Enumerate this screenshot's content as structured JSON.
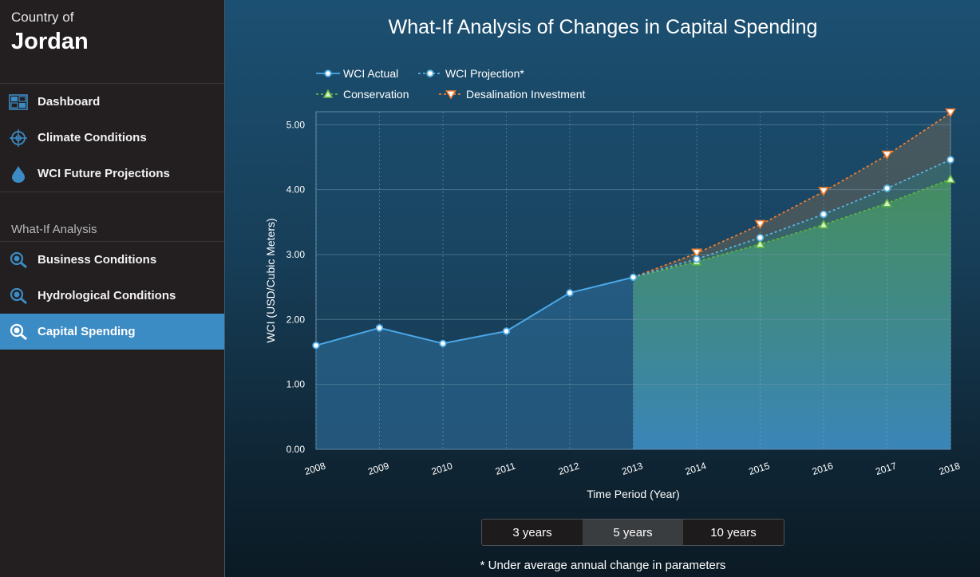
{
  "sidebar": {
    "country_label": "Country of",
    "country_name": "Jordan",
    "nav": [
      {
        "label": "Dashboard",
        "icon": "dashboard-icon"
      },
      {
        "label": "Climate Conditions",
        "icon": "crosshair-icon"
      },
      {
        "label": "WCI Future Projections",
        "icon": "water-drop-icon"
      }
    ],
    "section_title": "What-If Analysis",
    "whatif": [
      {
        "label": "Business Conditions",
        "icon": "magnifier-icon",
        "active": false
      },
      {
        "label": "Hydrological Conditions",
        "icon": "magnifier-icon",
        "active": false
      },
      {
        "label": "Capital Spending",
        "icon": "magnifier-icon",
        "active": true
      }
    ]
  },
  "main": {
    "range_buttons": [
      {
        "label": "3 years",
        "active": false
      },
      {
        "label": "5 years",
        "active": true
      },
      {
        "label": "10 years",
        "active": false
      }
    ],
    "footnote": "*  Under average annual change in parameters"
  },
  "colors": {
    "actual": "#4aa8e8",
    "projection": "#5eb4e0",
    "conservation": "#5fb53f",
    "desalination": "#f07d2d",
    "sidebar_active": "#3b8bc4"
  },
  "chart_data": {
    "type": "line",
    "title": "What-If Analysis of Changes in Capital Spending",
    "xlabel": "Time Period (Year)",
    "ylabel": "WCI (USD/Cubic Meters)",
    "ylim": [
      0,
      5.2
    ],
    "yticks": [
      "0.00",
      "1.00",
      "2.00",
      "3.00",
      "4.00",
      "5.00"
    ],
    "x": [
      "2008",
      "2009",
      "2010",
      "2011",
      "2012",
      "2013",
      "2014",
      "2015",
      "2016",
      "2017",
      "2018"
    ],
    "legend_placement": "top-left",
    "grid": true,
    "series": [
      {
        "name": "WCI Actual",
        "x": [
          "2008",
          "2009",
          "2010",
          "2011",
          "2012",
          "2013"
        ],
        "values": [
          1.6,
          1.87,
          1.63,
          1.82,
          2.41,
          2.65
        ]
      },
      {
        "name": "WCI Projection*",
        "x": [
          "2013",
          "2014",
          "2015",
          "2016",
          "2017",
          "2018"
        ],
        "values": [
          2.65,
          2.93,
          3.26,
          3.62,
          4.02,
          4.46
        ]
      },
      {
        "name": "Conservation",
        "x": [
          "2013",
          "2014",
          "2015",
          "2016",
          "2017",
          "2018"
        ],
        "values": [
          2.65,
          2.89,
          3.16,
          3.46,
          3.79,
          4.16
        ]
      },
      {
        "name": "Desalination Investment",
        "x": [
          "2013",
          "2014",
          "2015",
          "2016",
          "2017",
          "2018"
        ],
        "values": [
          2.65,
          3.02,
          3.46,
          3.97,
          4.53,
          5.18
        ]
      }
    ]
  }
}
